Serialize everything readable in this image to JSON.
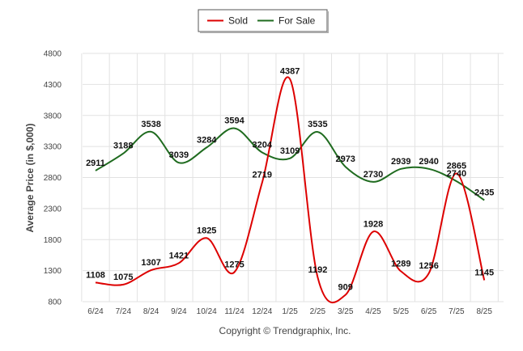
{
  "chart_data": {
    "type": "line",
    "ylabel": "Average Price (in $,000)",
    "credit": "Copyright © Trendgraphix, Inc.",
    "ylim": [
      800,
      4800
    ],
    "yticks": [
      800,
      1300,
      1800,
      2300,
      2800,
      3300,
      3800,
      4300,
      4800
    ],
    "categories": [
      "6/24",
      "7/24",
      "8/24",
      "9/24",
      "10/24",
      "11/24",
      "12/24",
      "1/25",
      "2/25",
      "3/25",
      "4/25",
      "5/25",
      "6/25",
      "7/25",
      "8/25"
    ],
    "grid": true,
    "legend_position": "top-center",
    "series": [
      {
        "name": "Sold",
        "color": "#dd0000",
        "values": [
          1108,
          1075,
          1307,
          1421,
          1825,
          1275,
          2719,
          4387,
          1192,
          909,
          1928,
          1289,
          1256,
          2865,
          1145
        ]
      },
      {
        "name": "For Sale",
        "color": "#1f6b1f",
        "values": [
          2911,
          3188,
          3538,
          3039,
          3284,
          3594,
          3204,
          3109,
          3535,
          2973,
          2730,
          2939,
          2940,
          2740,
          2435
        ]
      }
    ]
  }
}
